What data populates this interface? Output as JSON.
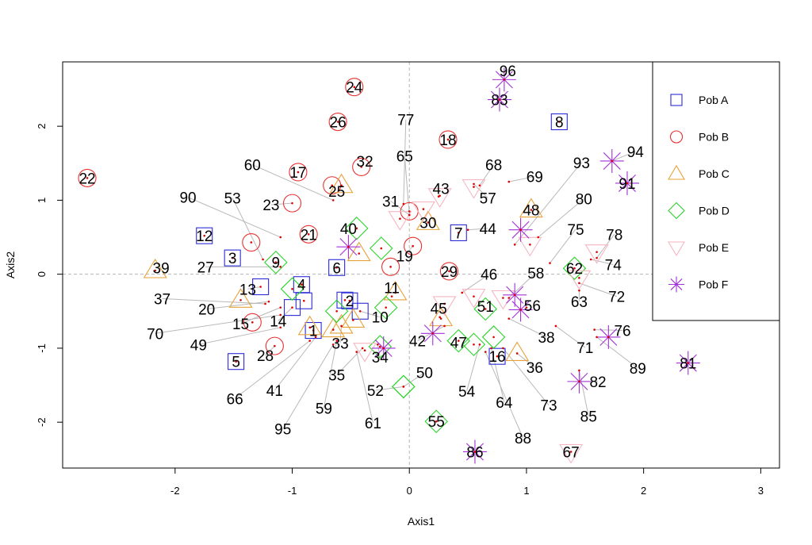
{
  "chart_data": {
    "type": "scatter",
    "title": "",
    "xlabel": "Axis1",
    "ylabel": "Axis2",
    "xlim": [
      -2.96,
      3.16
    ],
    "ylim": [
      -2.62,
      2.87
    ],
    "xticks": [
      "-2",
      "-1",
      "0",
      "1",
      "2",
      "3"
    ],
    "yticks": [
      "-2",
      "-1",
      "0",
      "1",
      "2"
    ],
    "reference_lines": {
      "x": 0,
      "y": 0
    },
    "legend_position": "top-right",
    "series": [
      {
        "name": "Pob A",
        "marker": "square",
        "color": "#2b2bd8",
        "points": [
          {
            "id": "1",
            "x": -0.82,
            "y": -0.76,
            "lx": -0.82,
            "ly": -0.76
          },
          {
            "id": "2",
            "x": -0.51,
            "y": -0.36,
            "lx": -0.51,
            "ly": -0.36
          },
          {
            "id": "3",
            "x": -1.51,
            "y": 0.22,
            "lx": -1.51,
            "ly": 0.22
          },
          {
            "id": "4",
            "x": -0.92,
            "y": -0.14,
            "lx": -0.92,
            "ly": -0.14
          },
          {
            "id": "5",
            "x": -1.48,
            "y": -1.18,
            "lx": -1.48,
            "ly": -1.18
          },
          {
            "id": "6",
            "x": -0.62,
            "y": 0.09,
            "lx": -0.62,
            "ly": 0.09
          },
          {
            "id": "7",
            "x": 0.42,
            "y": 0.56,
            "lx": 0.42,
            "ly": 0.56
          },
          {
            "id": "8",
            "x": 1.28,
            "y": 2.06,
            "lx": 1.28,
            "ly": 2.06
          },
          {
            "id": "10",
            "x": -0.42,
            "y": -0.5,
            "lx": -0.25,
            "ly": -0.58
          },
          {
            "id": "12",
            "x": -1.75,
            "y": 0.52,
            "lx": -1.75,
            "ly": 0.52
          },
          {
            "id": "13",
            "x": -1.27,
            "y": -0.17,
            "lx": -1.38,
            "ly": -0.2
          },
          {
            "id": "14",
            "x": -1.0,
            "y": -0.45,
            "lx": -1.12,
            "ly": -0.63
          },
          {
            "id": "16",
            "x": 0.75,
            "y": -1.11,
            "lx": 0.75,
            "ly": -1.11
          },
          {
            "id": "x1",
            "x": -0.9,
            "y": -0.36,
            "lx": -0.9,
            "ly": -0.36
          },
          {
            "id": "x2",
            "x": -0.55,
            "y": -0.35,
            "lx": -0.55,
            "ly": -0.35
          }
        ]
      },
      {
        "name": "Pob B",
        "marker": "circle",
        "color": "#e83131",
        "points": [
          {
            "id": "17",
            "x": -0.95,
            "y": 1.38,
            "lx": -0.95,
            "ly": 1.38
          },
          {
            "id": "18",
            "x": 0.33,
            "y": 1.82,
            "lx": 0.33,
            "ly": 1.82
          },
          {
            "id": "19",
            "x": 0.03,
            "y": 0.38,
            "lx": -0.04,
            "ly": 0.25
          },
          {
            "id": "21",
            "x": -0.86,
            "y": 0.54,
            "lx": -0.86,
            "ly": 0.54
          },
          {
            "id": "22",
            "x": -2.75,
            "y": 1.3,
            "lx": -2.75,
            "ly": 1.3
          },
          {
            "id": "23",
            "x": -1.0,
            "y": 0.96,
            "lx": -1.18,
            "ly": 0.94
          },
          {
            "id": "24",
            "x": -0.47,
            "y": 2.53,
            "lx": -0.47,
            "ly": 2.53
          },
          {
            "id": "25",
            "x": -0.66,
            "y": 1.2,
            "lx": -0.62,
            "ly": 1.12
          },
          {
            "id": "26",
            "x": -0.61,
            "y": 2.06,
            "lx": -0.61,
            "ly": 2.06
          },
          {
            "id": "28",
            "x": -1.15,
            "y": -0.97,
            "lx": -1.23,
            "ly": -1.1
          },
          {
            "id": "29",
            "x": 0.34,
            "y": 0.04,
            "lx": 0.34,
            "ly": 0.04
          },
          {
            "id": "32",
            "x": -0.41,
            "y": 1.45,
            "lx": -0.38,
            "ly": 1.53
          },
          {
            "id": "x3",
            "x": -1.35,
            "y": 0.43,
            "lx": -1.35,
            "ly": 0.43
          },
          {
            "id": "x4",
            "x": -1.34,
            "y": -0.65,
            "lx": -1.34,
            "ly": -0.65
          },
          {
            "id": "x5",
            "x": 0.0,
            "y": 0.85,
            "lx": 0.0,
            "ly": 0.85
          },
          {
            "id": "x6",
            "x": -0.16,
            "y": 0.1,
            "lx": -0.16,
            "ly": 0.1
          }
        ]
      },
      {
        "name": "Pob C",
        "marker": "triangle",
        "color": "#e8a23a",
        "points": [
          {
            "id": "30",
            "x": 0.16,
            "y": 0.7,
            "lx": 0.16,
            "ly": 0.7
          },
          {
            "id": "33",
            "x": -0.58,
            "y": -0.7,
            "lx": -0.59,
            "ly": -0.93
          },
          {
            "id": "36",
            "x": 0.92,
            "y": -1.07,
            "lx": 1.07,
            "ly": -1.26
          },
          {
            "id": "39",
            "x": -2.17,
            "y": 0.05,
            "lx": -2.12,
            "ly": 0.09
          },
          {
            "id": "48",
            "x": 1.04,
            "y": 0.87,
            "lx": 1.04,
            "ly": 0.87
          },
          {
            "id": "x7",
            "x": -0.58,
            "y": 1.2,
            "lx": -0.58,
            "ly": 1.2
          },
          {
            "id": "x8",
            "x": -0.43,
            "y": 0.28,
            "lx": -0.43,
            "ly": 0.28
          },
          {
            "id": "x9",
            "x": -0.85,
            "y": -0.72,
            "lx": -0.85,
            "ly": -0.72
          },
          {
            "id": "x10",
            "x": -0.65,
            "y": -0.75,
            "lx": -0.65,
            "ly": -0.75
          },
          {
            "id": "x11",
            "x": -0.48,
            "y": -0.62,
            "lx": -0.48,
            "ly": -0.62
          },
          {
            "id": "x12",
            "x": -0.12,
            "y": -0.25,
            "lx": -0.12,
            "ly": -0.25
          },
          {
            "id": "x13",
            "x": 0.27,
            "y": -0.6,
            "lx": 0.27,
            "ly": -0.6
          },
          {
            "id": "x14",
            "x": -1.44,
            "y": -0.35,
            "lx": -1.44,
            "ly": -0.35
          }
        ]
      },
      {
        "name": "Pob D",
        "marker": "diamond",
        "color": "#2ad52a",
        "points": [
          {
            "id": "9",
            "x": -1.14,
            "y": 0.16,
            "lx": -1.14,
            "ly": 0.16
          },
          {
            "id": "40",
            "x": -0.45,
            "y": 0.62,
            "lx": -0.52,
            "ly": 0.62
          },
          {
            "id": "47",
            "x": 0.42,
            "y": -0.9,
            "lx": 0.42,
            "ly": -0.92
          },
          {
            "id": "50",
            "x": -0.05,
            "y": -1.52,
            "lx": 0.13,
            "ly": -1.33
          },
          {
            "id": "51",
            "x": 0.65,
            "y": -0.47,
            "lx": 0.65,
            "ly": -0.43
          },
          {
            "id": "52",
            "x": -0.05,
            "y": -1.52,
            "lx": -0.29,
            "ly": -1.57
          },
          {
            "id": "55",
            "x": 0.23,
            "y": -1.99,
            "lx": 0.23,
            "ly": -1.99
          },
          {
            "id": "62",
            "x": 1.41,
            "y": 0.08,
            "lx": 1.41,
            "ly": 0.08
          },
          {
            "id": "x15",
            "x": -0.24,
            "y": 0.35,
            "lx": -0.24,
            "ly": 0.35
          },
          {
            "id": "x16",
            "x": -1.0,
            "y": -0.2,
            "lx": -1.0,
            "ly": -0.2
          },
          {
            "id": "x17",
            "x": -0.62,
            "y": -0.5,
            "lx": -0.62,
            "ly": -0.5
          },
          {
            "id": "x18",
            "x": -0.2,
            "y": -0.45,
            "lx": -0.2,
            "ly": -0.45
          },
          {
            "id": "x19",
            "x": -0.25,
            "y": -0.98,
            "lx": -0.25,
            "ly": -0.98
          },
          {
            "id": "x20",
            "x": 0.72,
            "y": -0.85,
            "lx": 0.72,
            "ly": -0.85
          },
          {
            "id": "x21",
            "x": 0.55,
            "y": -0.95,
            "lx": 0.55,
            "ly": -0.95
          }
        ]
      },
      {
        "name": "Pob E",
        "marker": "triangle-down",
        "color": "#f5b6c2",
        "points": [
          {
            "id": "67",
            "x": 1.38,
            "y": -2.4,
            "lx": 1.38,
            "ly": -2.4
          },
          {
            "id": "x22",
            "x": 0.12,
            "y": 0.88,
            "lx": 0.12,
            "ly": 0.88
          },
          {
            "id": "x23",
            "x": 0.26,
            "y": 1.06,
            "lx": 0.26,
            "ly": 1.06
          },
          {
            "id": "x24",
            "x": 0.55,
            "y": 1.18,
            "lx": 0.55,
            "ly": 1.18
          },
          {
            "id": "x25",
            "x": -0.08,
            "y": 0.75,
            "lx": -0.08,
            "ly": 0.75
          },
          {
            "id": "x26",
            "x": 1.03,
            "y": 0.4,
            "lx": 1.03,
            "ly": 0.4
          },
          {
            "id": "x27",
            "x": 1.6,
            "y": 0.3,
            "lx": 1.6,
            "ly": 0.3
          },
          {
            "id": "x28",
            "x": 0.55,
            "y": -0.3,
            "lx": 0.55,
            "ly": -0.3
          },
          {
            "id": "x29",
            "x": 0.3,
            "y": -0.4,
            "lx": 0.3,
            "ly": -0.4
          },
          {
            "id": "x30",
            "x": 1.45,
            "y": -0.05,
            "lx": 1.45,
            "ly": -0.05
          },
          {
            "id": "x31",
            "x": -0.38,
            "y": -1.03,
            "lx": -0.38,
            "ly": -1.03
          },
          {
            "id": "x32",
            "x": 0.8,
            "y": -0.32,
            "lx": 0.8,
            "ly": -0.32
          }
        ]
      },
      {
        "name": "Pob F",
        "marker": "asterisk",
        "color": "#a230d8",
        "points": [
          {
            "id": "81",
            "x": 2.38,
            "y": -1.2,
            "lx": 2.38,
            "ly": -1.2
          },
          {
            "id": "82",
            "x": 1.45,
            "y": -1.45,
            "lx": 1.61,
            "ly": -1.45
          },
          {
            "id": "83",
            "x": 0.77,
            "y": 2.36,
            "lx": 0.77,
            "ly": 2.36
          },
          {
            "id": "86",
            "x": 0.56,
            "y": -2.4,
            "lx": 0.56,
            "ly": -2.4
          },
          {
            "id": "91",
            "x": 1.86,
            "y": 1.23,
            "lx": 1.86,
            "ly": 1.23
          },
          {
            "id": "94",
            "x": 1.73,
            "y": 1.53,
            "lx": 1.93,
            "ly": 1.66
          },
          {
            "id": "96",
            "x": 0.81,
            "y": 2.63,
            "lx": 0.84,
            "ly": 2.75
          },
          {
            "id": "x33",
            "x": -0.52,
            "y": 0.37,
            "lx": -0.52,
            "ly": 0.37
          },
          {
            "id": "x34",
            "x": 0.95,
            "y": 0.6,
            "lx": 0.95,
            "ly": 0.6
          },
          {
            "id": "x35",
            "x": 0.9,
            "y": -0.28,
            "lx": 0.9,
            "ly": -0.28
          },
          {
            "id": "x36",
            "x": 0.95,
            "y": -0.48,
            "lx": 0.95,
            "ly": -0.48
          },
          {
            "id": "x37",
            "x": 1.7,
            "y": -0.85,
            "lx": 1.7,
            "ly": -0.85
          },
          {
            "id": "x38",
            "x": 0.2,
            "y": -0.8,
            "lx": 0.2,
            "ly": -0.8
          },
          {
            "id": "x39",
            "x": -0.22,
            "y": -1.0,
            "lx": -0.22,
            "ly": -1.0
          }
        ]
      }
    ],
    "callouts": [
      {
        "id": "11",
        "x": -0.15,
        "y": -0.3,
        "lx": -0.15,
        "ly": -0.18
      },
      {
        "id": "15",
        "x": -1.1,
        "y": -0.45,
        "lx": -1.44,
        "ly": -0.67
      },
      {
        "id": "20",
        "x": -1.2,
        "y": -0.37,
        "lx": -1.73,
        "ly": -0.47
      },
      {
        "id": "27",
        "x": -1.1,
        "y": 0.1,
        "lx": -1.74,
        "ly": 0.1
      },
      {
        "id": "31",
        "x": 0.0,
        "y": 0.8,
        "lx": -0.16,
        "ly": 0.99
      },
      {
        "id": "34",
        "x": -0.27,
        "y": -0.95,
        "lx": -0.25,
        "ly": -1.12
      },
      {
        "id": "35",
        "x": -0.4,
        "y": -1.0,
        "lx": -0.62,
        "ly": -1.36
      },
      {
        "id": "37",
        "x": -1.23,
        "y": -0.4,
        "lx": -2.11,
        "ly": -0.33
      },
      {
        "id": "38",
        "x": 0.85,
        "y": -0.6,
        "lx": 1.17,
        "ly": -0.85
      },
      {
        "id": "41",
        "x": -0.8,
        "y": -0.85,
        "lx": -1.15,
        "ly": -1.57
      },
      {
        "id": "42",
        "x": 0.3,
        "y": -0.7,
        "lx": 0.07,
        "ly": -0.9
      },
      {
        "id": "43",
        "x": 0.25,
        "y": 1.05,
        "lx": 0.27,
        "ly": 1.16
      },
      {
        "id": "44",
        "x": 0.5,
        "y": 0.6,
        "lx": 0.67,
        "ly": 0.62
      },
      {
        "id": "45",
        "x": 0.26,
        "y": -0.58,
        "lx": 0.25,
        "ly": -0.46
      },
      {
        "id": "46",
        "x": 0.45,
        "y": -0.25,
        "lx": 0.68,
        "ly": 0.0
      },
      {
        "id": "49",
        "x": -1.1,
        "y": -0.72,
        "lx": -1.8,
        "ly": -0.95
      },
      {
        "id": "53",
        "x": -1.25,
        "y": 0.2,
        "lx": -1.51,
        "ly": 1.03
      },
      {
        "id": "54",
        "x": 0.6,
        "y": -0.95,
        "lx": 0.49,
        "ly": -1.58
      },
      {
        "id": "56",
        "x": 1.0,
        "y": -0.45,
        "lx": 1.05,
        "ly": -0.42
      },
      {
        "id": "57",
        "x": 0.55,
        "y": 1.22,
        "lx": 0.67,
        "ly": 1.03
      },
      {
        "id": "58",
        "x": 0.85,
        "y": -0.32,
        "lx": 1.08,
        "ly": 0.02
      },
      {
        "id": "59",
        "x": -0.62,
        "y": -0.9,
        "lx": -0.73,
        "ly": -1.81
      },
      {
        "id": "60",
        "x": -0.65,
        "y": 1.0,
        "lx": -1.34,
        "ly": 1.48
      },
      {
        "id": "61",
        "x": -0.45,
        "y": -1.05,
        "lx": -0.31,
        "ly": -2.01
      },
      {
        "id": "63",
        "x": 1.45,
        "y": -0.22,
        "lx": 1.45,
        "ly": -0.37
      },
      {
        "id": "64",
        "x": 0.7,
        "y": -1.0,
        "lx": 0.81,
        "ly": -1.73
      },
      {
        "id": "65",
        "x": 0.0,
        "y": 0.8,
        "lx": -0.04,
        "ly": 1.6
      },
      {
        "id": "66",
        "x": -0.85,
        "y": -0.9,
        "lx": -1.49,
        "ly": -1.68
      },
      {
        "id": "68",
        "x": 0.6,
        "y": 1.2,
        "lx": 0.72,
        "ly": 1.48
      },
      {
        "id": "69",
        "x": 0.85,
        "y": 1.25,
        "lx": 1.07,
        "ly": 1.32
      },
      {
        "id": "70",
        "x": -1.1,
        "y": -0.55,
        "lx": -2.17,
        "ly": -0.8
      },
      {
        "id": "71",
        "x": 1.25,
        "y": -0.7,
        "lx": 1.5,
        "ly": -0.99
      },
      {
        "id": "72",
        "x": 1.45,
        "y": -0.12,
        "lx": 1.77,
        "ly": -0.3
      },
      {
        "id": "73",
        "x": 0.8,
        "y": -1.0,
        "lx": 1.19,
        "ly": -1.77
      },
      {
        "id": "74",
        "x": 1.55,
        "y": 0.2,
        "lx": 1.74,
        "ly": 0.13
      },
      {
        "id": "75",
        "x": 1.2,
        "y": 0.15,
        "lx": 1.42,
        "ly": 0.61
      },
      {
        "id": "76",
        "x": 1.58,
        "y": -0.75,
        "lx": 1.82,
        "ly": -0.76
      },
      {
        "id": "77",
        "x": -0.05,
        "y": 0.95,
        "lx": -0.03,
        "ly": 2.09
      },
      {
        "id": "78",
        "x": 1.6,
        "y": 0.22,
        "lx": 1.75,
        "ly": 0.54
      },
      {
        "id": "80",
        "x": 1.1,
        "y": 0.5,
        "lx": 1.49,
        "ly": 1.02
      },
      {
        "id": "85",
        "x": 1.45,
        "y": -1.3,
        "lx": 1.53,
        "ly": -1.92
      },
      {
        "id": "88",
        "x": 0.65,
        "y": -1.05,
        "lx": 0.97,
        "ly": -2.21
      },
      {
        "id": "89",
        "x": 1.6,
        "y": -0.85,
        "lx": 1.95,
        "ly": -1.27
      },
      {
        "id": "90",
        "x": -1.1,
        "y": 0.5,
        "lx": -1.89,
        "ly": 1.04
      },
      {
        "id": "93",
        "x": 0.9,
        "y": 0.4,
        "lx": 1.47,
        "ly": 1.51
      },
      {
        "id": "95",
        "x": -0.65,
        "y": -0.95,
        "lx": -1.08,
        "ly": -2.09
      }
    ]
  }
}
